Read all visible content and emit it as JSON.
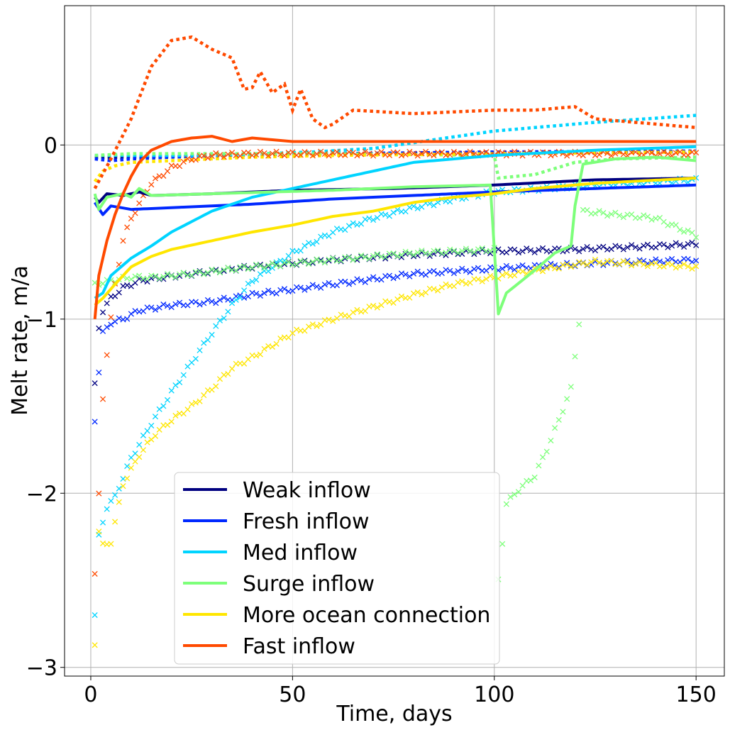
{
  "chart_data": {
    "type": "line",
    "xlabel": "Time, days",
    "ylabel": "Melt rate, m/a",
    "xlim": [
      -6.5,
      157
    ],
    "ylim": [
      -3.05,
      0.8
    ],
    "xticks": [
      0,
      50,
      100,
      150
    ],
    "xtick_labels": [
      "0",
      "50",
      "100",
      "150"
    ],
    "yticks": [
      -3,
      -2,
      -1,
      0
    ],
    "ytick_labels": [
      "−3",
      "−2",
      "−1",
      "0"
    ],
    "grid": true,
    "legend_position": "lower-center",
    "series": [
      {
        "name": "Weak inflow",
        "color": "#000080",
        "solid": [
          [
            1,
            -0.3
          ],
          [
            2,
            -0.33
          ],
          [
            4,
            -0.28
          ],
          [
            8,
            -0.29
          ],
          [
            12,
            -0.27
          ],
          [
            15,
            -0.29
          ],
          [
            30,
            -0.28
          ],
          [
            50,
            -0.26
          ],
          [
            75,
            -0.25
          ],
          [
            100,
            -0.23
          ],
          [
            125,
            -0.2
          ],
          [
            150,
            -0.19
          ]
        ],
        "dotted": [
          [
            1,
            -0.07
          ],
          [
            10,
            -0.07
          ],
          [
            30,
            -0.06
          ],
          [
            60,
            -0.05
          ],
          [
            100,
            -0.045
          ],
          [
            150,
            -0.04
          ]
        ],
        "crosses": [
          [
            1,
            -1.38
          ],
          [
            2,
            -1.05
          ],
          [
            3,
            -0.95
          ],
          [
            5,
            -0.88
          ],
          [
            8,
            -0.82
          ],
          [
            12,
            -0.78
          ],
          [
            15,
            -0.77
          ],
          [
            25,
            -0.74
          ],
          [
            40,
            -0.7
          ],
          [
            60,
            -0.66
          ],
          [
            80,
            -0.63
          ],
          [
            100,
            -0.61
          ],
          [
            120,
            -0.6
          ],
          [
            150,
            -0.57
          ]
        ]
      },
      {
        "name": "Fresh inflow",
        "color": "#0028ff",
        "solid": [
          [
            1,
            -0.33
          ],
          [
            3,
            -0.4
          ],
          [
            5,
            -0.35
          ],
          [
            10,
            -0.37
          ],
          [
            20,
            -0.36
          ],
          [
            40,
            -0.34
          ],
          [
            60,
            -0.31
          ],
          [
            80,
            -0.29
          ],
          [
            100,
            -0.27
          ],
          [
            125,
            -0.25
          ],
          [
            150,
            -0.23
          ]
        ],
        "dotted": [
          [
            1,
            -0.08
          ],
          [
            5,
            -0.09
          ],
          [
            10,
            -0.08
          ],
          [
            30,
            -0.06
          ],
          [
            60,
            -0.05
          ],
          [
            100,
            -0.04
          ],
          [
            150,
            -0.035
          ]
        ],
        "crosses": [
          [
            1,
            -1.58
          ],
          [
            2,
            -1.3
          ],
          [
            3,
            -1.08
          ],
          [
            5,
            -1.02
          ],
          [
            8,
            -1.0
          ],
          [
            12,
            -0.95
          ],
          [
            20,
            -0.92
          ],
          [
            30,
            -0.9
          ],
          [
            40,
            -0.86
          ],
          [
            60,
            -0.8
          ],
          [
            80,
            -0.74
          ],
          [
            100,
            -0.71
          ],
          [
            125,
            -0.68
          ],
          [
            150,
            -0.66
          ]
        ]
      },
      {
        "name": "Med inflow",
        "color": "#00d4ff",
        "solid": [
          [
            1,
            -0.88
          ],
          [
            3,
            -0.85
          ],
          [
            5,
            -0.75
          ],
          [
            10,
            -0.65
          ],
          [
            15,
            -0.58
          ],
          [
            20,
            -0.5
          ],
          [
            30,
            -0.38
          ],
          [
            40,
            -0.3
          ],
          [
            50,
            -0.25
          ],
          [
            60,
            -0.2
          ],
          [
            70,
            -0.15
          ],
          [
            80,
            -0.1
          ],
          [
            100,
            -0.06
          ],
          [
            125,
            -0.03
          ],
          [
            150,
            -0.01
          ]
        ],
        "dotted": [
          [
            1,
            -0.06
          ],
          [
            10,
            -0.06
          ],
          [
            30,
            -0.06
          ],
          [
            55,
            -0.04
          ],
          [
            70,
            -0.02
          ],
          [
            85,
            0.03
          ],
          [
            100,
            0.08
          ],
          [
            125,
            0.13
          ],
          [
            150,
            0.17
          ]
        ],
        "crosses": [
          [
            1,
            -2.7
          ],
          [
            2,
            -2.25
          ],
          [
            4,
            -2.08
          ],
          [
            6,
            -2.02
          ],
          [
            10,
            -1.8
          ],
          [
            15,
            -1.6
          ],
          [
            20,
            -1.42
          ],
          [
            25,
            -1.25
          ],
          [
            30,
            -1.08
          ],
          [
            35,
            -0.92
          ],
          [
            40,
            -0.78
          ],
          [
            50,
            -0.62
          ],
          [
            60,
            -0.5
          ],
          [
            70,
            -0.42
          ],
          [
            80,
            -0.36
          ],
          [
            90,
            -0.31
          ],
          [
            100,
            -0.27
          ],
          [
            125,
            -0.23
          ],
          [
            150,
            -0.2
          ]
        ]
      },
      {
        "name": "Surge inflow",
        "color": "#7dff7a",
        "solid": [
          [
            1,
            -0.28
          ],
          [
            2,
            -0.37
          ],
          [
            4,
            -0.3
          ],
          [
            8,
            -0.28
          ],
          [
            10,
            -0.3
          ],
          [
            12,
            -0.25
          ],
          [
            15,
            -0.29
          ],
          [
            30,
            -0.28
          ],
          [
            60,
            -0.26
          ],
          [
            80,
            -0.24
          ],
          [
            99,
            -0.23
          ],
          [
            101,
            -0.97
          ],
          [
            103,
            -0.85
          ],
          [
            110,
            -0.72
          ],
          [
            115,
            -0.62
          ],
          [
            119,
            -0.58
          ],
          [
            120,
            -0.35
          ],
          [
            122,
            -0.11
          ],
          [
            130,
            -0.08
          ],
          [
            140,
            -0.07
          ],
          [
            150,
            -0.09
          ]
        ],
        "dotted": [
          [
            1,
            -0.06
          ],
          [
            10,
            -0.05
          ],
          [
            30,
            -0.05
          ],
          [
            60,
            -0.05
          ],
          [
            100,
            -0.06
          ],
          [
            101,
            -0.19
          ],
          [
            110,
            -0.17
          ],
          [
            120,
            -0.1
          ],
          [
            130,
            -0.08
          ],
          [
            150,
            -0.07
          ]
        ],
        "crosses": [
          [
            1,
            -0.8
          ],
          [
            5,
            -0.78
          ],
          [
            10,
            -0.76
          ],
          [
            15,
            -0.76
          ],
          [
            25,
            -0.74
          ],
          [
            40,
            -0.7
          ],
          [
            60,
            -0.66
          ],
          [
            80,
            -0.62
          ],
          [
            100,
            -0.6
          ],
          [
            101,
            -2.5
          ],
          [
            103,
            -2.06
          ],
          [
            106,
            -1.98
          ],
          [
            110,
            -1.9
          ],
          [
            113,
            -1.75
          ],
          [
            116,
            -1.58
          ],
          [
            119,
            -1.4
          ],
          [
            121,
            -1.02
          ],
          [
            122,
            -0.38
          ],
          [
            130,
            -0.4
          ],
          [
            140,
            -0.42
          ],
          [
            150,
            -0.52
          ]
        ]
      },
      {
        "name": "More ocean connection",
        "color": "#ffe600",
        "solid": [
          [
            1,
            -0.92
          ],
          [
            3,
            -0.88
          ],
          [
            6,
            -0.8
          ],
          [
            10,
            -0.7
          ],
          [
            15,
            -0.64
          ],
          [
            20,
            -0.6
          ],
          [
            30,
            -0.55
          ],
          [
            40,
            -0.5
          ],
          [
            50,
            -0.46
          ],
          [
            60,
            -0.41
          ],
          [
            70,
            -0.38
          ],
          [
            80,
            -0.33
          ],
          [
            90,
            -0.3
          ],
          [
            100,
            -0.28
          ],
          [
            110,
            -0.25
          ],
          [
            125,
            -0.22
          ],
          [
            150,
            -0.19
          ]
        ],
        "dotted": [
          [
            1,
            -0.21
          ],
          [
            3,
            -0.15
          ],
          [
            6,
            -0.12
          ],
          [
            10,
            -0.1
          ],
          [
            20,
            -0.09
          ],
          [
            40,
            -0.07
          ],
          [
            60,
            -0.06
          ],
          [
            100,
            -0.05
          ],
          [
            150,
            -0.04
          ]
        ],
        "crosses": [
          [
            1,
            -2.86
          ],
          [
            2,
            -2.22
          ],
          [
            3,
            -2.3
          ],
          [
            5,
            -2.28
          ],
          [
            8,
            -1.95
          ],
          [
            12,
            -1.78
          ],
          [
            16,
            -1.66
          ],
          [
            20,
            -1.58
          ],
          [
            25,
            -1.5
          ],
          [
            30,
            -1.4
          ],
          [
            35,
            -1.28
          ],
          [
            40,
            -1.22
          ],
          [
            45,
            -1.15
          ],
          [
            50,
            -1.08
          ],
          [
            60,
            -1.0
          ],
          [
            70,
            -0.93
          ],
          [
            80,
            -0.86
          ],
          [
            90,
            -0.8
          ],
          [
            100,
            -0.76
          ],
          [
            110,
            -0.72
          ],
          [
            125,
            -0.67
          ],
          [
            150,
            -0.7
          ]
        ]
      },
      {
        "name": "Fast inflow",
        "color": "#ff4a00",
        "solid": [
          [
            1,
            -1.0
          ],
          [
            2,
            -0.75
          ],
          [
            4,
            -0.55
          ],
          [
            6,
            -0.4
          ],
          [
            8,
            -0.28
          ],
          [
            10,
            -0.18
          ],
          [
            12,
            -0.1
          ],
          [
            15,
            -0.03
          ],
          [
            20,
            0.02
          ],
          [
            25,
            0.04
          ],
          [
            30,
            0.05
          ],
          [
            35,
            0.02
          ],
          [
            40,
            0.04
          ],
          [
            45,
            0.03
          ],
          [
            50,
            0.02
          ],
          [
            60,
            0.02
          ],
          [
            80,
            0.02
          ],
          [
            100,
            0.02
          ],
          [
            125,
            0.02
          ],
          [
            150,
            0.02
          ]
        ],
        "dotted": [
          [
            1,
            -0.25
          ],
          [
            5,
            -0.08
          ],
          [
            10,
            0.15
          ],
          [
            15,
            0.45
          ],
          [
            20,
            0.6
          ],
          [
            25,
            0.62
          ],
          [
            30,
            0.55
          ],
          [
            35,
            0.5
          ],
          [
            38,
            0.32
          ],
          [
            40,
            0.33
          ],
          [
            42,
            0.42
          ],
          [
            45,
            0.3
          ],
          [
            48,
            0.35
          ],
          [
            50,
            0.2
          ],
          [
            52,
            0.32
          ],
          [
            55,
            0.15
          ],
          [
            58,
            0.1
          ],
          [
            60,
            0.12
          ],
          [
            65,
            0.2
          ],
          [
            80,
            0.18
          ],
          [
            100,
            0.2
          ],
          [
            110,
            0.2
          ],
          [
            120,
            0.22
          ],
          [
            125,
            0.15
          ],
          [
            140,
            0.12
          ],
          [
            150,
            0.1
          ]
        ],
        "crosses": [
          [
            1,
            -2.47
          ],
          [
            2,
            -2.01
          ],
          [
            3,
            -1.45
          ],
          [
            4,
            -1.2
          ],
          [
            6,
            -0.8
          ],
          [
            8,
            -0.55
          ],
          [
            10,
            -0.42
          ],
          [
            15,
            -0.22
          ],
          [
            20,
            -0.13
          ],
          [
            25,
            -0.08
          ],
          [
            30,
            -0.06
          ],
          [
            40,
            -0.05
          ],
          [
            60,
            -0.05
          ],
          [
            100,
            -0.05
          ],
          [
            150,
            -0.05
          ]
        ]
      }
    ]
  }
}
